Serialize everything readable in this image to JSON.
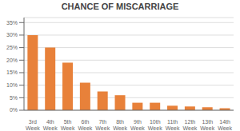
{
  "chart_data": {
    "type": "bar",
    "title": "CHANCE OF MISCARRIAGE",
    "categories": [
      "3rd\nWeek",
      "4th\nWeek",
      "5th\nWeek",
      "6th\nWeek",
      "7th\nWeek",
      "8th\nWeek",
      "9th\nWeek",
      "10th\nWeek",
      "11th\nWeek",
      "12th\nWeek",
      "13th\nWeek",
      "14th\nWeek"
    ],
    "values": [
      30,
      25,
      19,
      11,
      7.5,
      6,
      3,
      3,
      1.8,
      1.5,
      1.2,
      0.8
    ],
    "color": "#E8813A",
    "ylim": [
      0,
      37
    ],
    "yticks": [
      {
        "value": 0,
        "label": "0%"
      },
      {
        "value": 5,
        "label": "5%"
      },
      {
        "value": 10,
        "label": "10%"
      },
      {
        "value": 15,
        "label": "15%"
      },
      {
        "value": 20,
        "label": "20%"
      },
      {
        "value": 25,
        "label": "25%"
      },
      {
        "value": 30,
        "label": "30%"
      },
      {
        "value": 35,
        "label": "35%"
      }
    ],
    "grid": true
  }
}
